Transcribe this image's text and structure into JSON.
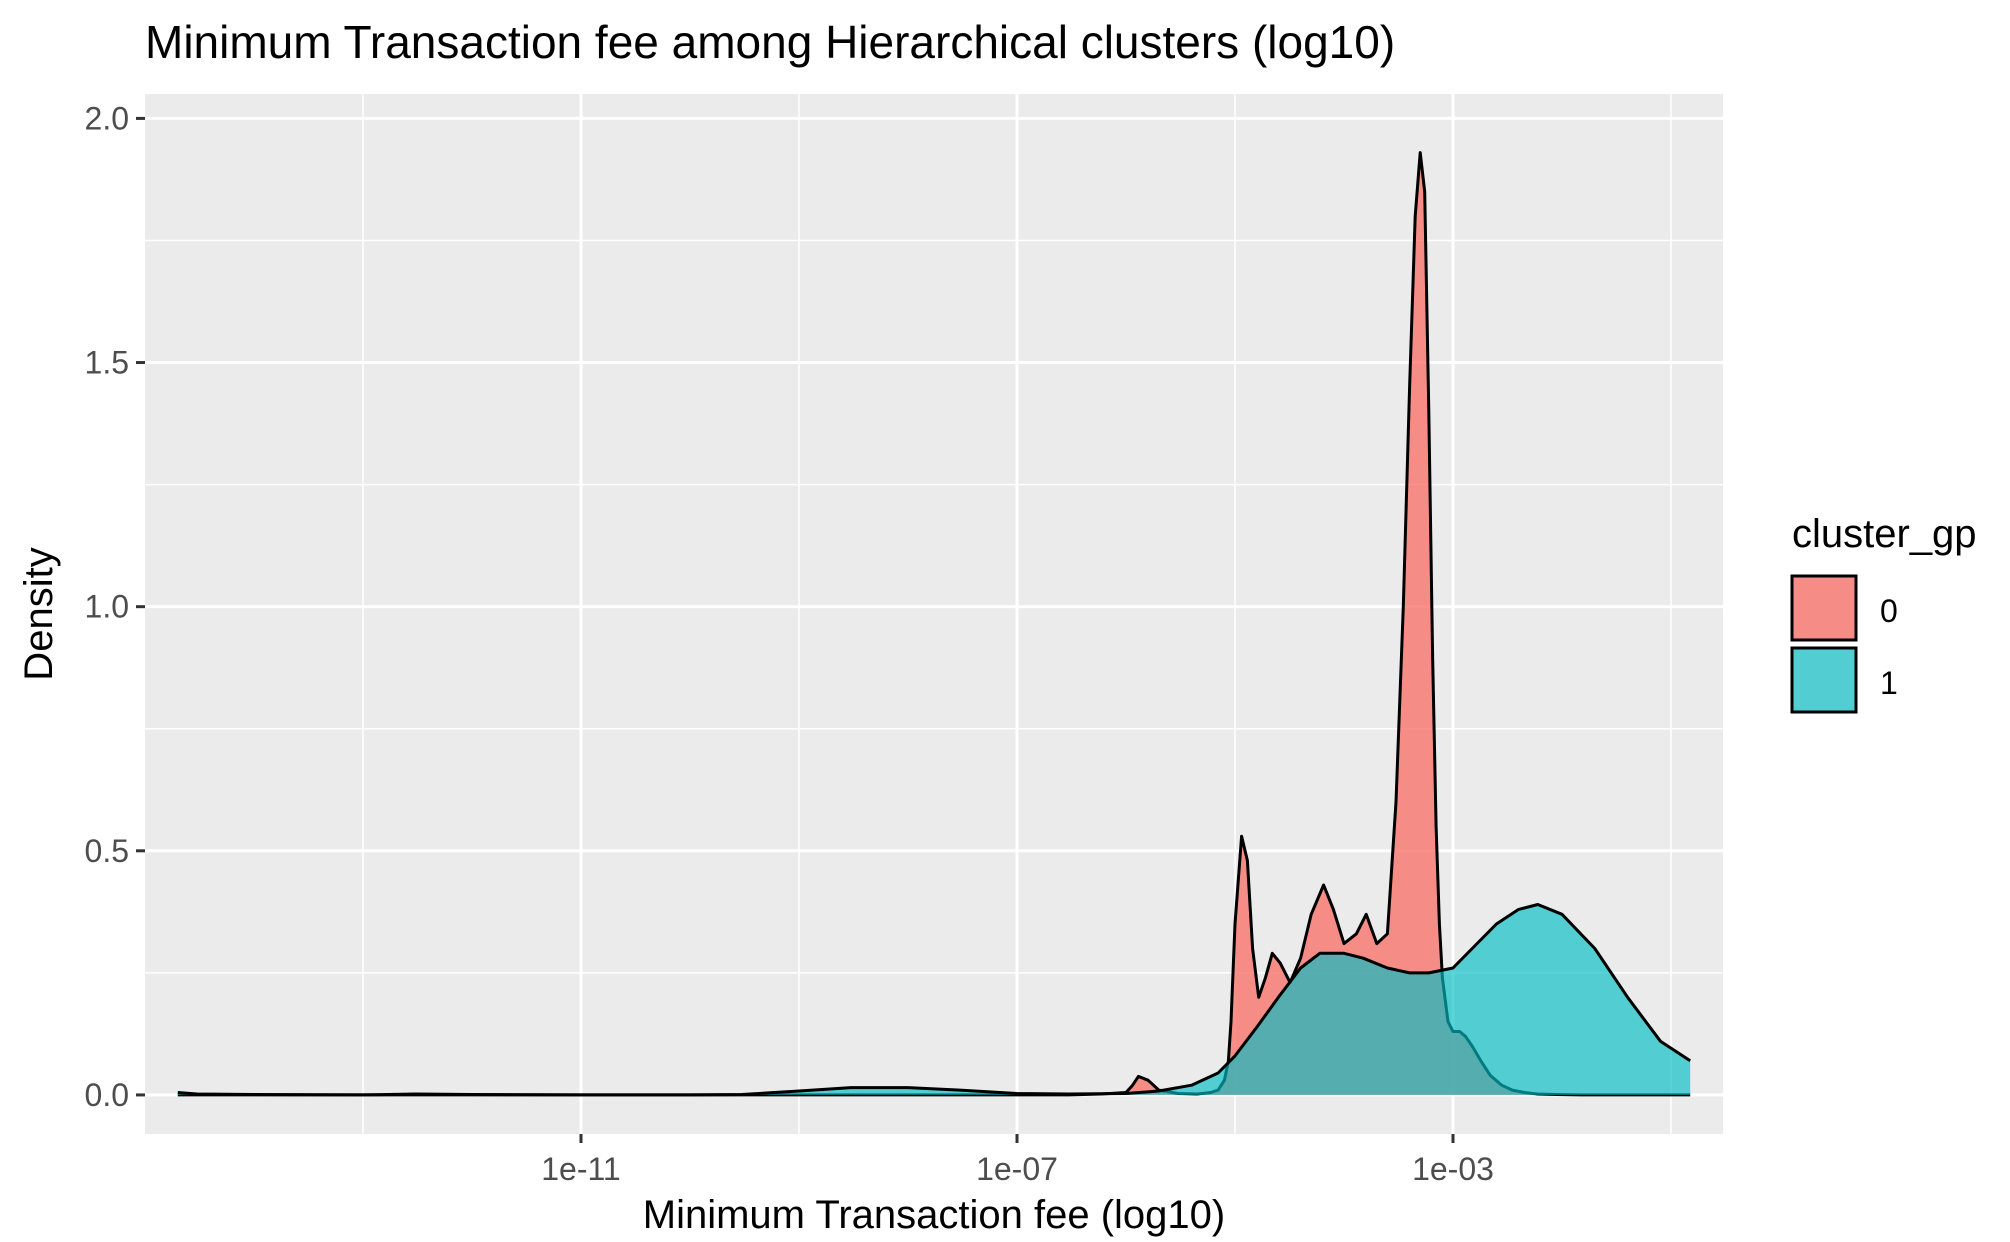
{
  "chart_data": {
    "type": "area",
    "title": "Minimum Transaction fee among Hierarchical clusters (log10)",
    "xlabel": "Minimum Transaction fee (log10)",
    "ylabel": "Density",
    "x_scale": "log10",
    "xlim": [
      1e-15,
      0.3
    ],
    "ylim": [
      -0.08,
      2.05
    ],
    "x_ticks": [
      {
        "value": 1e-11,
        "label": "1e-11"
      },
      {
        "value": 1e-07,
        "label": "1e-07"
      },
      {
        "value": 0.001,
        "label": "1e-03"
      }
    ],
    "x_minor_ticks": [
      1e-13,
      1e-09,
      1e-05,
      0.1
    ],
    "y_ticks": [
      {
        "value": 0.0,
        "label": "0.0"
      },
      {
        "value": 0.5,
        "label": "0.5"
      },
      {
        "value": 1.0,
        "label": "1.0"
      },
      {
        "value": 1.5,
        "label": "1.5"
      },
      {
        "value": 2.0,
        "label": "2.0"
      }
    ],
    "y_minor_ticks": [
      0.25,
      0.75,
      1.25,
      1.75
    ],
    "grid": true,
    "legend": {
      "title": "cluster_gp",
      "position": "right",
      "entries": [
        {
          "label": "0",
          "color": "#F8766D"
        },
        {
          "label": "1",
          "color": "#00BFC4"
        }
      ]
    },
    "series": [
      {
        "name": "0",
        "color": "#F8766D",
        "fill_opacity": 0.8,
        "x": [
          2e-15,
          2e-14,
          1e-13,
          1e-12,
          1e-11,
          1e-10,
          1e-09,
          1e-08,
          1e-07,
          3e-07,
          6e-07,
          1e-06,
          1.15e-06,
          1.3e-06,
          1.6e-06,
          2e-06,
          3e-06,
          4.5e-06,
          6e-06,
          7e-06,
          8e-06,
          8.7e-06,
          9.2e-06,
          1e-05,
          1.15e-05,
          1.3e-05,
          1.45e-05,
          1.65e-05,
          1.9e-05,
          2.2e-05,
          2.6e-05,
          3.2e-05,
          4e-05,
          5e-05,
          6.5e-05,
          8e-05,
          0.0001,
          0.00013,
          0.00016,
          0.0002,
          0.00025,
          0.0003,
          0.00035,
          0.0004,
          0.00045,
          0.0005,
          0.00055,
          0.0006,
          0.00065,
          0.0007,
          0.00075,
          0.0008,
          0.0009,
          0.001,
          0.00115,
          0.0013,
          0.0015,
          0.0018,
          0.0022,
          0.0028,
          0.0035,
          0.0045,
          0.006,
          0.009,
          0.015,
          0.03,
          0.07,
          0.15
        ],
        "y": [
          0.0,
          0.0,
          0.0,
          0.0,
          0.0,
          0.0,
          0.0,
          0.0,
          0.0,
          0.0,
          0.002,
          0.005,
          0.02,
          0.038,
          0.03,
          0.01,
          0.003,
          0.002,
          0.005,
          0.01,
          0.03,
          0.07,
          0.15,
          0.35,
          0.53,
          0.48,
          0.3,
          0.2,
          0.24,
          0.29,
          0.27,
          0.23,
          0.28,
          0.37,
          0.43,
          0.38,
          0.31,
          0.33,
          0.37,
          0.31,
          0.33,
          0.6,
          1.0,
          1.45,
          1.8,
          1.93,
          1.85,
          1.4,
          0.9,
          0.55,
          0.35,
          0.24,
          0.15,
          0.13,
          0.13,
          0.12,
          0.1,
          0.07,
          0.04,
          0.02,
          0.01,
          0.005,
          0.002,
          0.001,
          0.0,
          0.0,
          0.0,
          0.0
        ]
      },
      {
        "name": "1",
        "color": "#00BFC4",
        "fill_opacity": 0.65,
        "x": [
          2e-15,
          3e-15,
          1e-14,
          1e-13,
          3e-13,
          1e-12,
          1e-11,
          1e-10,
          3e-10,
          1e-09,
          3e-09,
          1e-08,
          3e-08,
          1e-07,
          3e-07,
          1e-06,
          2e-06,
          4e-06,
          7e-06,
          1e-05,
          1.6e-05,
          2.5e-05,
          4e-05,
          6e-05,
          0.0001,
          0.00015,
          0.00025,
          0.0004,
          0.0006,
          0.001,
          0.0015,
          0.0025,
          0.004,
          0.006,
          0.01,
          0.02,
          0.04,
          0.08,
          0.15
        ],
        "y": [
          0.005,
          0.002,
          0.001,
          0.0,
          0.002,
          0.001,
          0.0,
          0.0,
          0.001,
          0.008,
          0.015,
          0.015,
          0.01,
          0.003,
          0.002,
          0.003,
          0.008,
          0.02,
          0.045,
          0.08,
          0.14,
          0.2,
          0.26,
          0.29,
          0.29,
          0.28,
          0.26,
          0.25,
          0.25,
          0.26,
          0.3,
          0.35,
          0.38,
          0.39,
          0.37,
          0.3,
          0.2,
          0.11,
          0.07
        ]
      }
    ]
  }
}
